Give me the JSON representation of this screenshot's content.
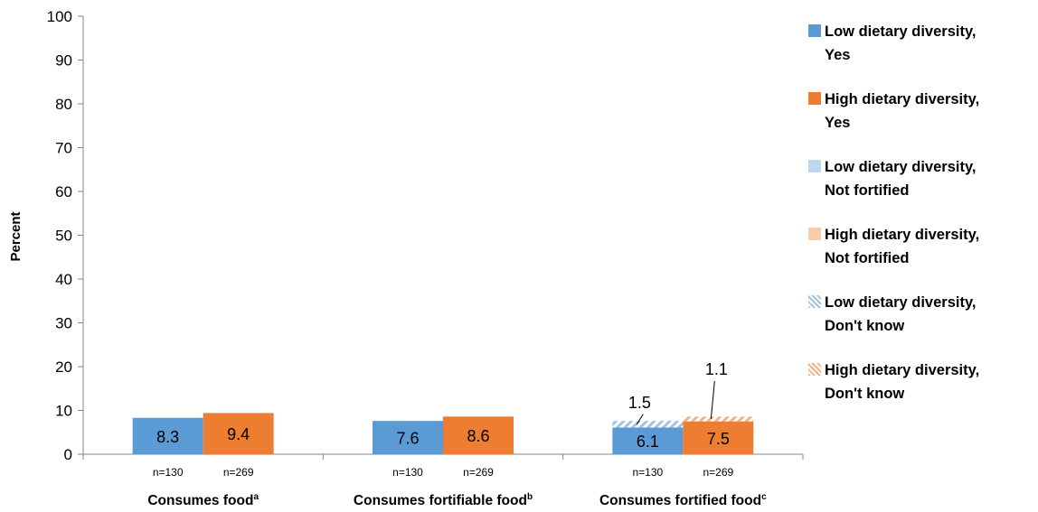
{
  "chart_data": {
    "type": "bar",
    "ylabel": "Percent",
    "ylim": [
      0,
      100
    ],
    "yticks": [
      0,
      10,
      20,
      30,
      40,
      50,
      60,
      70,
      80,
      90,
      100
    ],
    "grid": false,
    "legend_position": "right",
    "categories": [
      {
        "label": "Consumes food",
        "sup": "a"
      },
      {
        "label": "Consumes fortifiable food",
        "sup": "b"
      },
      {
        "label": "Consumes fortified food",
        "sup": "c"
      }
    ],
    "sample_sizes": {
      "low": "n=130",
      "high": "n=269"
    },
    "series": [
      {
        "name": "Low dietary diversity, Yes",
        "group": "low",
        "pattern": "solid",
        "color": "#5B9BD5",
        "values": [
          8.3,
          7.6,
          6.1
        ],
        "labels": [
          "8.3",
          "7.6",
          "6.1"
        ]
      },
      {
        "name": "High dietary diversity, Yes",
        "group": "high",
        "pattern": "solid",
        "color": "#ED7D31",
        "values": [
          9.4,
          8.6,
          7.5
        ],
        "labels": [
          "9.4",
          "8.6",
          "7.5"
        ]
      },
      {
        "name": "Low dietary diversity, Not fortified",
        "group": "low",
        "pattern": "light",
        "color": "#BDD7EE",
        "values": [
          0,
          0,
          0
        ],
        "labels": []
      },
      {
        "name": "High dietary diversity, Not fortified",
        "group": "high",
        "pattern": "light",
        "color": "#F8CBAD",
        "values": [
          0,
          0,
          0
        ],
        "labels": []
      },
      {
        "name": "Low dietary diversity, Don't know",
        "group": "low",
        "pattern": "hatch",
        "color": "#9DC3E6",
        "values": [
          0,
          0,
          1.5
        ],
        "labels": [
          "",
          "",
          "1.5"
        ]
      },
      {
        "name": "High dietary diversity, Don't know",
        "group": "high",
        "pattern": "hatch",
        "color": "#F4B183",
        "values": [
          0,
          0,
          1.1
        ],
        "labels": [
          "",
          "",
          "1.1"
        ]
      }
    ]
  }
}
